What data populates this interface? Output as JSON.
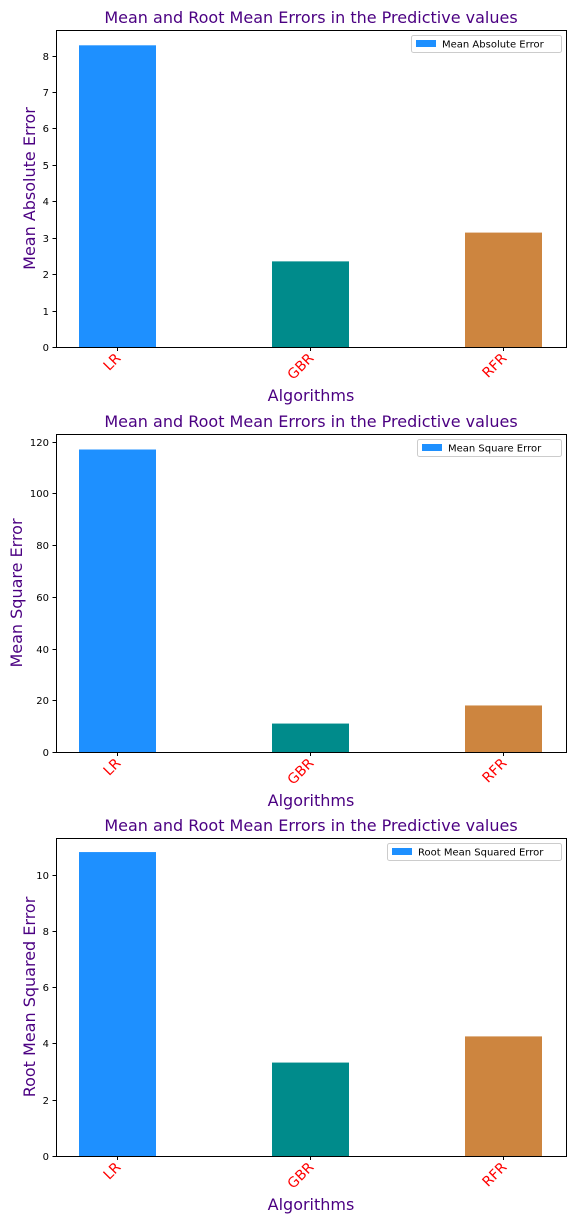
{
  "chart_data": [
    {
      "type": "bar",
      "title": "Mean and Root Mean Errors in the Predictive values",
      "xlabel": "Algorithms",
      "ylabel": "Mean Absolute Error",
      "categories": [
        "LR",
        "GBR",
        "RFR"
      ],
      "values": [
        8.28,
        2.35,
        3.14
      ],
      "bar_colors": [
        "#1e90ff",
        "#008b8b",
        "#cd853f"
      ],
      "legend": {
        "label": "Mean Absolute Error",
        "color": "#1e90ff",
        "placement": "top-right"
      },
      "ylim": [
        0,
        8.7
      ],
      "yticks": [
        0,
        1,
        2,
        3,
        4,
        5,
        6,
        7,
        8
      ],
      "grid": false
    },
    {
      "type": "bar",
      "title": "Mean and Root Mean Errors in the Predictive values",
      "xlabel": "Algorithms",
      "ylabel": "Mean Square Error",
      "categories": [
        "LR",
        "GBR",
        "RFR"
      ],
      "values": [
        117,
        11,
        18
      ],
      "bar_colors": [
        "#1e90ff",
        "#008b8b",
        "#cd853f"
      ],
      "legend": {
        "label": " Mean Square Error",
        "color": "#1e90ff",
        "placement": "top-right"
      },
      "ylim": [
        0,
        123
      ],
      "yticks": [
        0,
        20,
        40,
        60,
        80,
        100,
        120
      ],
      "grid": false
    },
    {
      "type": "bar",
      "title": "Mean and Root Mean Errors in the Predictive values",
      "xlabel": "Algorithms",
      "ylabel": "Root Mean Squared Error",
      "categories": [
        "LR",
        "GBR",
        "RFR"
      ],
      "values": [
        10.8,
        3.32,
        4.25
      ],
      "bar_colors": [
        "#1e90ff",
        "#008b8b",
        "#cd853f"
      ],
      "legend": {
        "label": "Root Mean Squared Error",
        "color": "#1e90ff",
        "placement": "top-right"
      },
      "ylim": [
        0,
        11.3
      ],
      "yticks": [
        0,
        2,
        4,
        6,
        8,
        10
      ],
      "grid": false
    }
  ],
  "colors": {
    "title": "#4b0082",
    "axis_label": "#4b0082",
    "xtick": "#ff0000"
  }
}
